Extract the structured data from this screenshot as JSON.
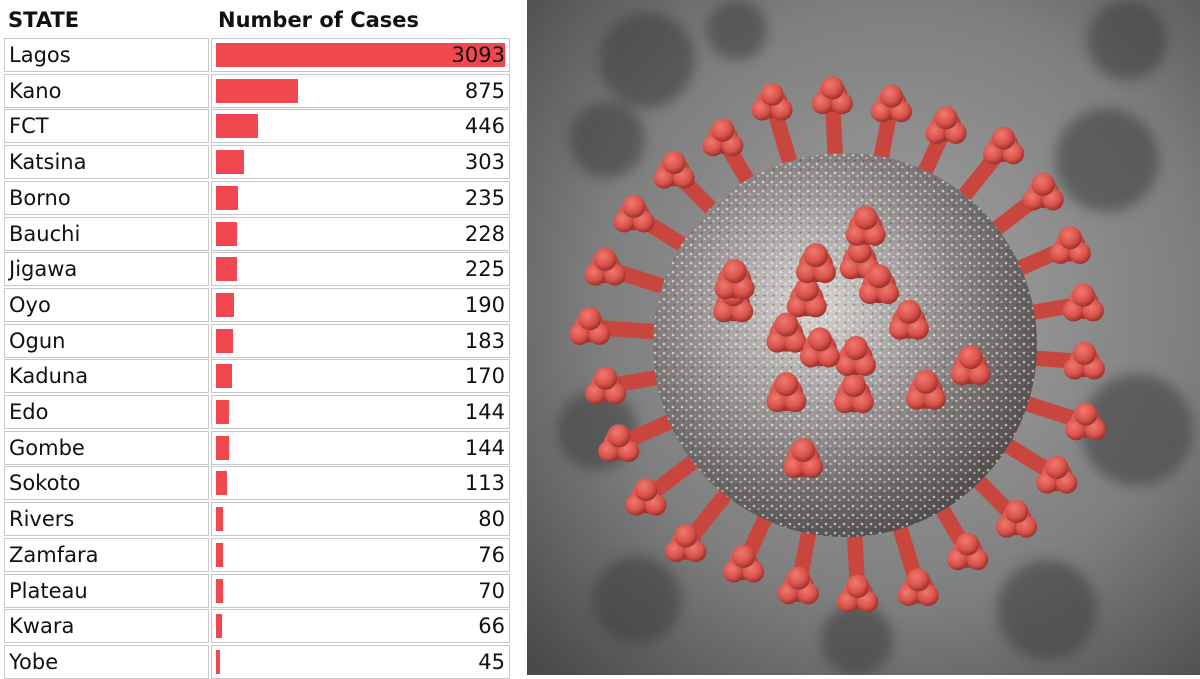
{
  "table": {
    "header_state": "STATE",
    "header_cases": "Number of Cases"
  },
  "chart_data": {
    "type": "bar",
    "orientation": "horizontal",
    "categories": [
      "Lagos",
      "Kano",
      "FCT",
      "Katsina",
      "Borno",
      "Bauchi",
      "Jigawa",
      "Oyo",
      "Ogun",
      "Kaduna",
      "Edo",
      "Gombe",
      "Sokoto",
      "Rivers",
      "Zamfara",
      "Plateau",
      "Kwara",
      "Yobe"
    ],
    "values": [
      3093,
      875,
      446,
      303,
      235,
      228,
      225,
      190,
      183,
      170,
      144,
      144,
      113,
      80,
      76,
      70,
      66,
      45
    ],
    "xlabel": "Number of Cases",
    "ylabel": "STATE",
    "xlim": [
      0,
      3093
    ],
    "bar_color": "#f0484e"
  },
  "illustration": {
    "subject": "coronavirus-particle",
    "spike_color": "#d9524a",
    "background_color": "#8a8a8a"
  }
}
